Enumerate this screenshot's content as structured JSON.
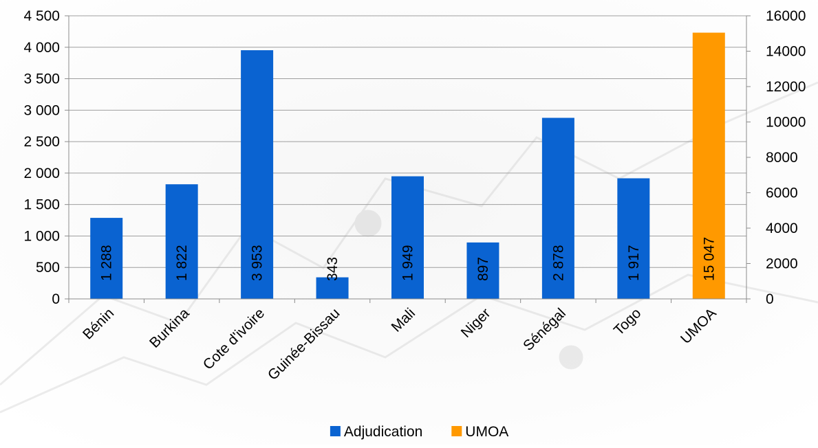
{
  "chart_data": {
    "type": "bar",
    "title": "",
    "xlabel": "",
    "ylabel": "",
    "categories": [
      "Bénin",
      "Burkina",
      "Cote d'ivoire",
      "Guinée-Bissau",
      "Mali",
      "Niger",
      "Sénégal",
      "Togo",
      "UMOA"
    ],
    "series": [
      {
        "name": "Adjudication",
        "axis": "left",
        "color": "#0a63d1",
        "values": [
          1288,
          1822,
          3953,
          343,
          1949,
          897,
          2878,
          1917,
          null
        ],
        "labels": [
          "1 288",
          "1 822",
          "3 953",
          "343",
          "1 949",
          "897",
          "2 878",
          "1 917",
          ""
        ]
      },
      {
        "name": "UMOA",
        "axis": "right",
        "color": "#ff9900",
        "values": [
          null,
          null,
          null,
          null,
          null,
          null,
          null,
          null,
          15047
        ],
        "labels": [
          "",
          "",
          "",
          "",
          "",
          "",
          "",
          "",
          "15 047"
        ]
      }
    ],
    "y_left": {
      "range": [
        0,
        4500
      ],
      "ticks": [
        0,
        500,
        1000,
        1500,
        2000,
        2500,
        3000,
        3500,
        4000,
        4500
      ],
      "tick_labels": [
        "0",
        "500",
        "1 000",
        "1 500",
        "2 000",
        "2 500",
        "3 000",
        "3 500",
        "4 000",
        "4 500"
      ]
    },
    "y_right": {
      "range": [
        0,
        16000
      ],
      "ticks": [
        0,
        2000,
        4000,
        6000,
        8000,
        10000,
        12000,
        14000,
        16000
      ],
      "tick_labels": [
        "0",
        "2000",
        "4000",
        "6000",
        "8000",
        "10000",
        "12000",
        "14000",
        "16000"
      ]
    },
    "grid": true,
    "legend_position": "bottom",
    "data_labels": "inside-base-rotated"
  }
}
